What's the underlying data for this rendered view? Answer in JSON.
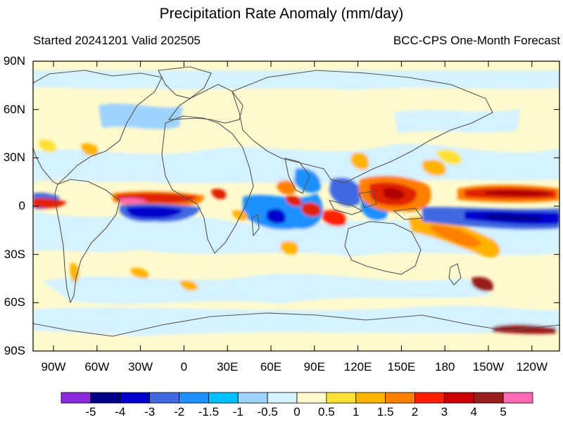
{
  "title": "Precipitation Rate Anomaly (mm/day)",
  "subtitle_left": "Started 20241201  Valid 202505",
  "subtitle_right": "BCC-CPS One-Month Forecast",
  "lat_labels": [
    "90N",
    "60N",
    "30N",
    "0",
    "30S",
    "60S",
    "90S"
  ],
  "lon_labels": [
    "90W",
    "60W",
    "30W",
    "0",
    "30E",
    "60E",
    "90E",
    "120E",
    "150E",
    "180",
    "150W",
    "120W"
  ],
  "colorbar": {
    "labels": [
      "-5",
      "-4",
      "-3",
      "-2",
      "-1.5",
      "-1",
      "-0.5",
      "0",
      "0.5",
      "1",
      "1.5",
      "2",
      "3",
      "4",
      "5"
    ],
    "colors": [
      "#8a2be2",
      "#00008b",
      "#0000cd",
      "#4169e1",
      "#1e90ff",
      "#00bfff",
      "#9fd3ff",
      "#d4f2ff",
      "#fffacd",
      "#ffe135",
      "#ffb300",
      "#ff7f00",
      "#ff2000",
      "#cc0000",
      "#9b1c1c",
      "#ff69b4"
    ]
  },
  "map": {
    "background_color": "#fffacd",
    "features": [
      {
        "name": "ITCZ-pacific-north-positive",
        "color": "#e02000"
      },
      {
        "name": "south-pacific-negative-band",
        "color": "#0000cd"
      },
      {
        "name": "atlantic-equatorial-positive",
        "color": "#e02000"
      },
      {
        "name": "atlantic-south-negative",
        "color": "#0000cd"
      },
      {
        "name": "maritime-continent-positive",
        "color": "#e02000"
      },
      {
        "name": "indian-ocean-negative",
        "color": "#1e90ff"
      },
      {
        "name": "spcz-positive",
        "color": "#ff7f00"
      }
    ]
  }
}
